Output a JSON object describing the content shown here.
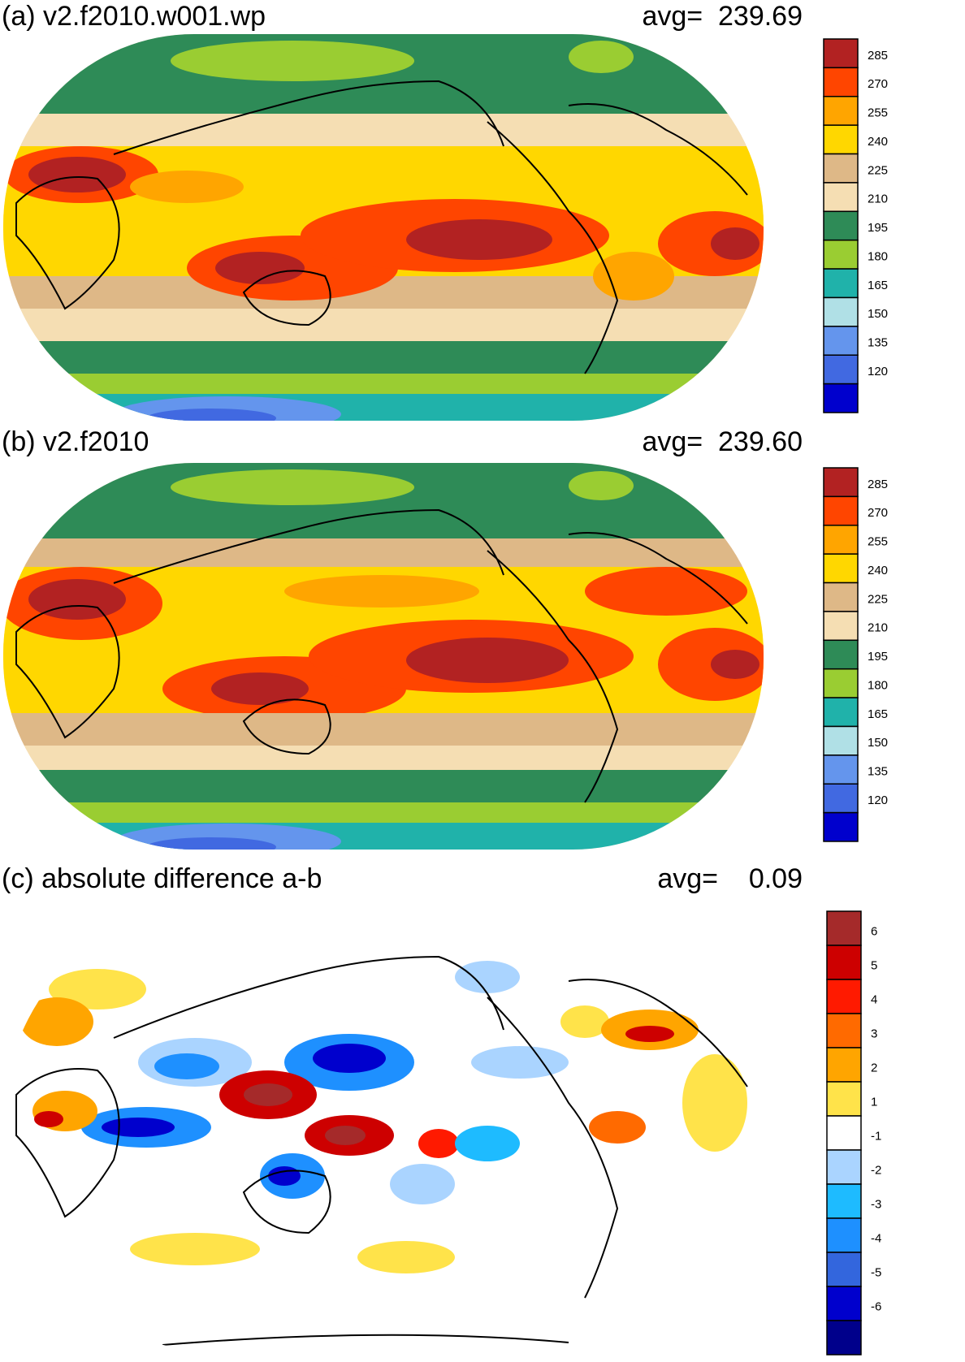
{
  "panels": [
    {
      "id": "a",
      "title": "(a) v2.f2010.w001.wp",
      "avg_label": "avg=  239.69",
      "colorbar": {
        "labels": [
          "285",
          "270",
          "255",
          "240",
          "225",
          "210",
          "195",
          "180",
          "165",
          "150",
          "135",
          "120"
        ],
        "colors": [
          "#b22222",
          "#ff4500",
          "#ffa500",
          "#ffd700",
          "#deb887",
          "#f5deb3",
          "#2e8b57",
          "#9acd32",
          "#20b2aa",
          "#b0e0e6",
          "#6495ed",
          "#4169e1",
          "#0000cd"
        ]
      }
    },
    {
      "id": "b",
      "title": "(b) v2.f2010",
      "avg_label": "avg=  239.60",
      "colorbar": {
        "labels": [
          "285",
          "270",
          "255",
          "240",
          "225",
          "210",
          "195",
          "180",
          "165",
          "150",
          "135",
          "120"
        ],
        "colors": [
          "#b22222",
          "#ff4500",
          "#ffa500",
          "#ffd700",
          "#deb887",
          "#f5deb3",
          "#2e8b57",
          "#9acd32",
          "#20b2aa",
          "#b0e0e6",
          "#6495ed",
          "#4169e1",
          "#0000cd"
        ]
      }
    },
    {
      "id": "c",
      "title": "(c) absolute difference a-b",
      "avg_label": "avg=    0.09",
      "colorbar": {
        "labels": [
          "6",
          "5",
          "4",
          "3",
          "2",
          "1",
          "-1",
          "-2",
          "-3",
          "-4",
          "-5",
          "-6"
        ],
        "colors": [
          "#a52a2a",
          "#cd0000",
          "#ff1a00",
          "#ff6a00",
          "#ffa500",
          "#ffe34a",
          "#ffffff",
          "#aad4ff",
          "#1ebbff",
          "#1e90ff",
          "#3366dd",
          "#0000cd",
          "#00008b"
        ]
      }
    }
  ]
}
